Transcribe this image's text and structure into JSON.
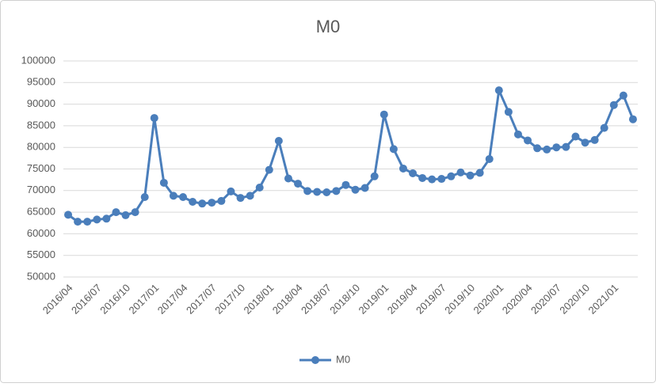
{
  "chart_data": {
    "type": "line",
    "title": "M0",
    "categories": [
      "2016/04",
      null,
      null,
      "2016/07",
      null,
      null,
      "2016/10",
      null,
      null,
      "2017/01",
      null,
      null,
      "2017/04",
      null,
      null,
      "2017/07",
      null,
      null,
      "2017/10",
      null,
      null,
      "2018/01",
      null,
      null,
      "2018/04",
      null,
      null,
      "2018/07",
      null,
      null,
      "2018/10",
      null,
      null,
      "2019/01",
      null,
      null,
      "2019/04",
      null,
      null,
      "2019/07",
      null,
      null,
      "2019/10",
      null,
      null,
      "2020/01",
      null,
      null,
      "2020/04",
      null,
      null,
      "2020/07",
      null,
      null,
      "2020/10",
      null,
      null,
      "2021/01",
      null,
      null
    ],
    "series": [
      {
        "name": "M0",
        "color": "#4a7ebb",
        "values": [
          64400,
          62800,
          62800,
          63300,
          63500,
          65000,
          64300,
          65000,
          68500,
          86800,
          71800,
          68800,
          68500,
          67400,
          67000,
          67200,
          67600,
          69800,
          68300,
          68800,
          70700,
          74800,
          81500,
          72800,
          71600,
          69900,
          69700,
          69600,
          69900,
          71300,
          70200,
          70600,
          73300,
          87600,
          79600,
          75100,
          74000,
          72900,
          72600,
          72700,
          73300,
          74200,
          73500,
          74100,
          77300,
          93200,
          88200,
          83000,
          81600,
          79800,
          79500,
          80000,
          80100,
          82500,
          81100,
          81700,
          84500,
          89800,
          92000,
          86500
        ]
      }
    ],
    "ylim": [
      50000,
      100000
    ],
    "yticks": [
      50000,
      55000,
      60000,
      65000,
      70000,
      75000,
      80000,
      85000,
      90000,
      95000,
      100000
    ],
    "grid": true,
    "legend": "bottom"
  }
}
